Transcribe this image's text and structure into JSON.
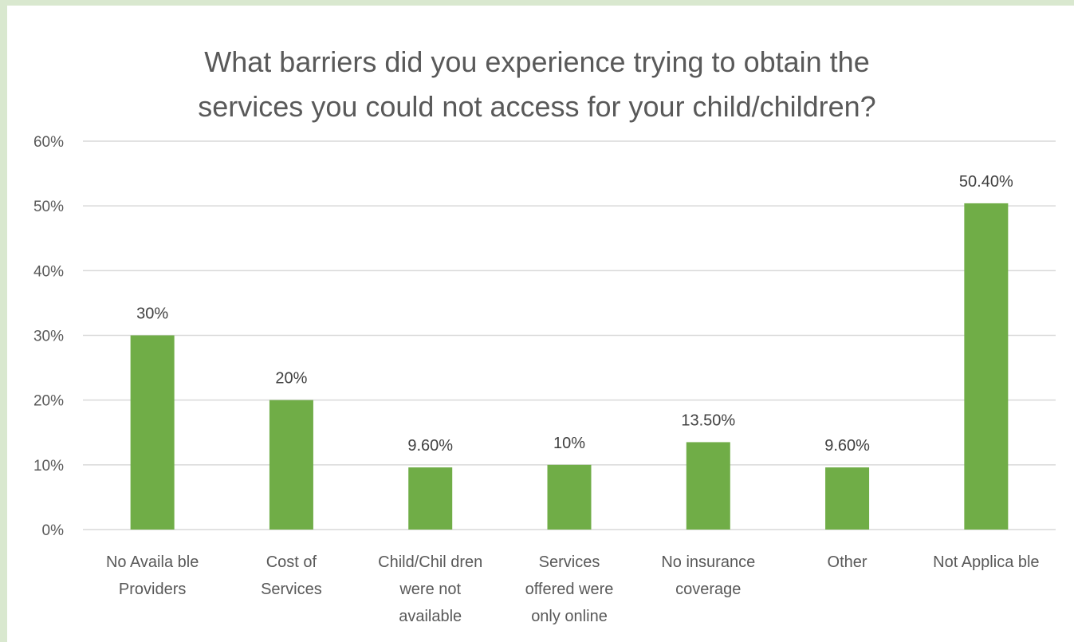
{
  "chart_data": {
    "type": "bar",
    "title_lines": [
      "What barriers did you experience trying to obtain the",
      "services you could not access for your child/children?"
    ],
    "categories": [
      [
        "No Availa ble",
        "Providers"
      ],
      [
        "Cost of",
        "Services"
      ],
      [
        "Child/Chil dren",
        "were not",
        "available"
      ],
      [
        "Services",
        "offered were",
        "only online"
      ],
      [
        "No insurance",
        "coverage"
      ],
      [
        "Other"
      ],
      [
        "Not Applica ble"
      ]
    ],
    "values": [
      30,
      20,
      9.6,
      10,
      13.5,
      9.6,
      50.4
    ],
    "data_labels": [
      "30%",
      "20%",
      "9.60%",
      "10%",
      "13.50%",
      "9.60%",
      "50.40%"
    ],
    "ylim": [
      0,
      60
    ],
    "yticks": [
      0,
      10,
      20,
      30,
      40,
      50,
      60
    ],
    "ytick_labels": [
      "0%",
      "10%",
      "20%",
      "30%",
      "40%",
      "50%",
      "60%"
    ],
    "grid": true,
    "legend": "none",
    "bar_color": "#70ad47",
    "grid_color": "#d9d9d9"
  }
}
